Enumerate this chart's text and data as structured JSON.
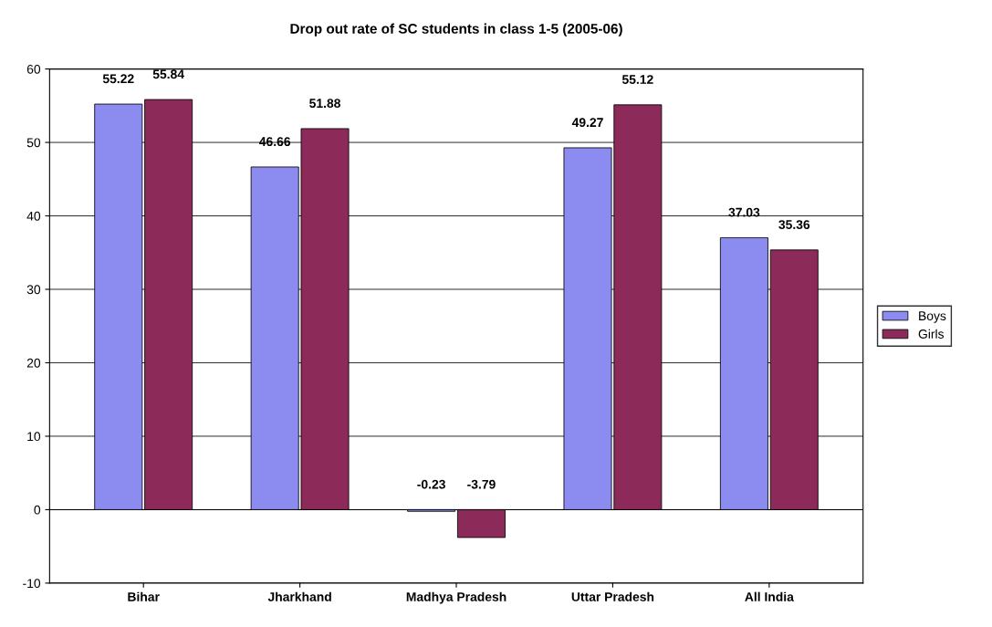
{
  "chart_data": {
    "type": "bar",
    "title": "Drop out rate of SC students in class 1-5 (2005-06)",
    "categories": [
      "Bihar",
      "Jharkhand",
      "Madhya Pradesh",
      "Uttar Pradesh",
      "All India"
    ],
    "series": [
      {
        "name": "Boys",
        "color": "#8c8cf0",
        "values": [
          55.22,
          46.66,
          -0.23,
          49.27,
          37.03
        ]
      },
      {
        "name": "Girls",
        "color": "#8c2a5a",
        "values": [
          55.84,
          51.88,
          -3.79,
          55.12,
          35.36
        ]
      }
    ],
    "ylim": [
      -10,
      60
    ],
    "yticks": [
      -10,
      0,
      10,
      20,
      30,
      40,
      50,
      60
    ],
    "grid": "y",
    "legend": "right",
    "data_labels": true
  }
}
